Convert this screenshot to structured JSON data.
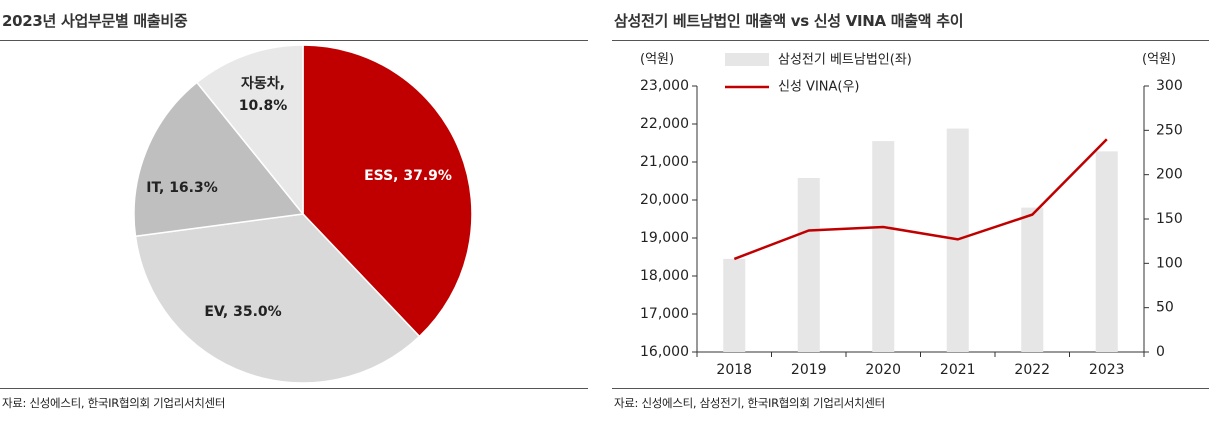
{
  "left": {
    "title": "2023년 사업부문별 매출비중",
    "source": "자료: 신성에스티, 한국IR협의회 기업리서치센터"
  },
  "right": {
    "title": "삼성전기 베트남법인 매출액 vs 신성 VINA 매출액 추이",
    "source": "자료: 신성에스티, 삼성전기, 한국IR협의회 기업리서치센터"
  },
  "colors": {
    "ess": "#c00000",
    "ev": "#d9d9d9",
    "it": "#bfbfbf",
    "auto": "#e8e8e8",
    "bar": "#e6e6e6",
    "line": "#c00000"
  },
  "chart_data": [
    {
      "type": "pie",
      "title": "2023년 사업부문별 매출비중",
      "slices": [
        {
          "name": "ESS",
          "value": 37.9,
          "label": "ESS, 37.9%",
          "color": "#c00000"
        },
        {
          "name": "EV",
          "value": 35.0,
          "label": "EV, 35.0%",
          "color": "#d9d9d9"
        },
        {
          "name": "IT",
          "value": 16.3,
          "label": "IT, 16.3%",
          "color": "#bfbfbf"
        },
        {
          "name": "자동차",
          "value": 10.8,
          "label": "자동차,\n10.8%",
          "color": "#e8e8e8"
        }
      ]
    },
    {
      "type": "bar+line",
      "title": "삼성전기 베트남법인 매출액 vs 신성 VINA 매출액 추이",
      "categories": [
        "2018",
        "2019",
        "2020",
        "2021",
        "2022",
        "2023"
      ],
      "y_left": {
        "label": "(억원)",
        "range": [
          16000,
          23000
        ],
        "ticks": [
          "16,000",
          "17,000",
          "18,000",
          "19,000",
          "20,000",
          "21,000",
          "22,000",
          "23,000"
        ]
      },
      "y_right": {
        "label": "(억원)",
        "range": [
          0,
          300
        ],
        "ticks": [
          "0",
          "50",
          "100",
          "150",
          "200",
          "250",
          "300"
        ]
      },
      "series": [
        {
          "name": "삼성전기 베트남법인(좌)",
          "type": "bar",
          "axis": "left",
          "values": [
            18450,
            20580,
            21550,
            21880,
            19800,
            21280
          ]
        },
        {
          "name": "신성 VINA(우)",
          "type": "line",
          "axis": "right",
          "values": [
            105,
            137,
            141,
            127,
            155,
            240
          ]
        }
      ]
    }
  ]
}
